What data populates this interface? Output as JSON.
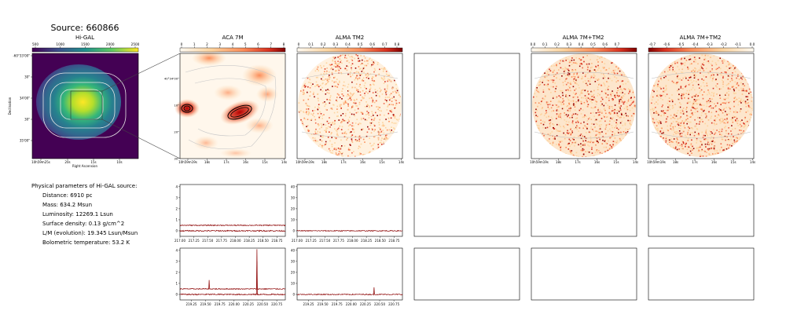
{
  "title": "Source: 660866",
  "colors": {
    "viridis": [
      "#440154",
      "#3b528b",
      "#21918c",
      "#5ec962",
      "#fde725"
    ],
    "hot": [
      "#fff5e8",
      "#fdd49e",
      "#fc8d59",
      "#d7301f",
      "#7f0000"
    ],
    "spectrum_line": "#8b0000",
    "contour": "#c8c8c8"
  },
  "higal": {
    "title": "Hi-GAL",
    "cbar_ticks": [
      "500",
      "1000",
      "1500",
      "2000",
      "2500"
    ],
    "y_ticks": [
      "-60°33'00\"",
      "30\"",
      "34'00\"",
      "30\"",
      "35'00\""
    ],
    "x_ticks": [
      "10h59m25s",
      "20s",
      "15s",
      "10s"
    ],
    "xlabel": "Right Ascension",
    "ylabel": "Declination"
  },
  "panels": [
    {
      "title": "ACA 7M",
      "cbar_ticks": [
        "0",
        "1",
        "2",
        "3",
        "4",
        "5",
        "6",
        "7",
        "8"
      ],
      "y_ticks": [
        "40°34'00\"",
        "10\"",
        "20\"",
        "30\""
      ],
      "x_ticks": [
        "10h59m19s",
        "18s",
        "17s",
        "16s",
        "15s",
        "14s"
      ]
    },
    {
      "title": "ALMA TM2",
      "cbar_ticks": [
        "0",
        "0.1",
        "0.2",
        "0.3",
        "0.4",
        "0.5",
        "0.6",
        "0.7",
        "0.8"
      ],
      "x_ticks": [
        "10h59m19s",
        "18s",
        "17s",
        "16s",
        "15s",
        "14s"
      ]
    },
    {
      "title": ""
    },
    {
      "title": "ALMA 7M+TM2",
      "cbar_ticks": [
        "0.0",
        "0.1",
        "0.2",
        "0.3",
        "0.4",
        "0.5",
        "0.6",
        "0.7"
      ],
      "x_ticks": [
        "10h59m19s",
        "18s",
        "17s",
        "16s",
        "15s",
        "14s"
      ]
    },
    {
      "title": "ALMA 7M+TM2",
      "cbar_ticks": [
        "-0.7",
        "-0.6",
        "-0.5",
        "-0.4",
        "-0.3",
        "-0.2",
        "-0.1",
        "0.0"
      ],
      "x_ticks": [
        "10h59m19s",
        "18s",
        "17s",
        "16s",
        "15s",
        "14s"
      ]
    }
  ],
  "info": {
    "heading": "Physical parameters of Hi-GAL source:",
    "lines": [
      "Distance: 6910 pc",
      "Mass: 634.2 Msun",
      "Luminosity: 12269.1 Lsun",
      "Surface density: 0.13 g/cm^2",
      "L/M (evolution): 19.345 Lsun/Msun",
      "Bolometric temperature: 53.2 K"
    ]
  },
  "chart_data": [
    {
      "type": "line",
      "panel": "ACA 7M spectrum (row 1)",
      "x_ticks": [
        "217.00",
        "217.25",
        "217.50",
        "217.75",
        "218.00",
        "218.25",
        "218.50",
        "218.75"
      ],
      "xlim": [
        217.0,
        218.9
      ],
      "y_ticks": [
        "0",
        "1",
        "2",
        "3",
        "4"
      ],
      "ylim": [
        -0.5,
        4.2
      ],
      "series": [
        {
          "baseline": 0.5,
          "noise": 0.04
        },
        {
          "baseline": 0.0,
          "noise": 0.05
        }
      ]
    },
    {
      "type": "line",
      "panel": "ALMA TM2 spectrum (row 1)",
      "x_ticks": [
        "217.00",
        "217.25",
        "217.50",
        "217.75",
        "218.00",
        "218.25",
        "218.50",
        "218.75"
      ],
      "xlim": [
        217.0,
        218.9
      ],
      "y_ticks": [
        "0",
        "10",
        "20",
        "30",
        "40"
      ],
      "ylim": [
        -5,
        42
      ],
      "series": [
        {
          "baseline": 0.0,
          "noise": 0.4
        }
      ]
    },
    {
      "type": "line",
      "panel": "ACA 7M spectrum (row 2)",
      "x_ticks": [
        "219.25",
        "219.50",
        "219.75",
        "220.00",
        "220.25",
        "220.50",
        "220.75"
      ],
      "xlim": [
        219.05,
        220.9
      ],
      "y_ticks": [
        "0",
        "1",
        "2",
        "3",
        "4"
      ],
      "ylim": [
        -0.5,
        4.2
      ],
      "series": [
        {
          "baseline": 0.5,
          "noise": 0.04,
          "peaks": [
            {
              "x": 219.56,
              "y": 1.3
            },
            {
              "x": 220.4,
              "y": 4.1
            }
          ]
        },
        {
          "baseline": 0.0,
          "noise": 0.05,
          "peaks": [
            {
              "x": 220.4,
              "y": 3.0
            }
          ]
        }
      ]
    },
    {
      "type": "line",
      "panel": "ALMA TM2 spectrum (row 2)",
      "x_ticks": [
        "219.25",
        "219.50",
        "219.75",
        "220.00",
        "220.25",
        "220.50",
        "220.75"
      ],
      "xlim": [
        219.05,
        220.9
      ],
      "y_ticks": [
        "0",
        "10",
        "20",
        "30",
        "40"
      ],
      "ylim": [
        -5,
        42
      ],
      "series": [
        {
          "baseline": 0.0,
          "noise": 0.4,
          "peaks": [
            {
              "x": 220.4,
              "y": 6.5
            }
          ]
        }
      ]
    }
  ]
}
